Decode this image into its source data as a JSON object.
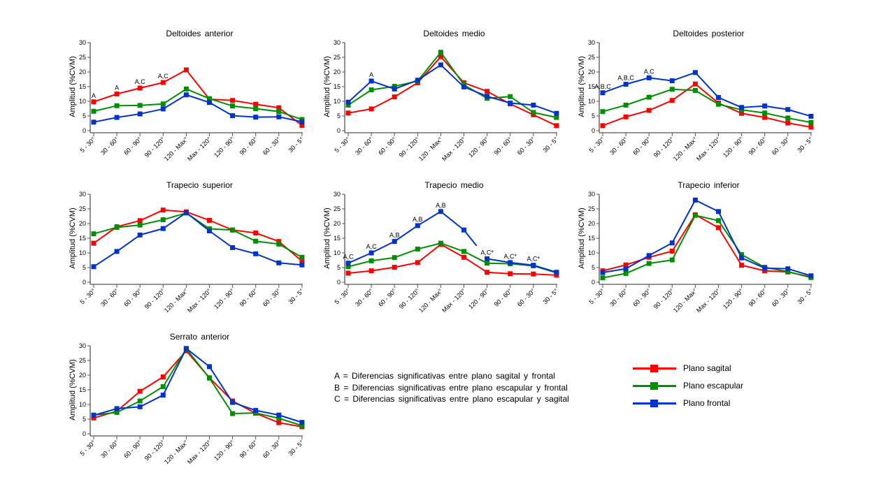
{
  "chart_data": [
    {
      "type": "line",
      "title": "Deltoides anterior",
      "xlabel": "",
      "ylabel": "Amplitud (%CVM)",
      "ylim": [
        0,
        30
      ],
      "yticks": [
        0,
        5,
        10,
        15,
        20,
        25,
        30
      ],
      "categories": [
        "5 - 30°",
        "30 - 60°",
        "60 - 90°",
        "90 - 120°",
        "120 - Max°",
        "Max - 120°",
        "120 - 90°",
        "90 - 60°",
        "60 - 30°",
        "30 - 5°"
      ],
      "series": [
        {
          "name": "Plano sagital",
          "color": "#ff0000",
          "values": [
            9.8,
            12.5,
            14.5,
            16.4,
            20.7,
            10.7,
            10.3,
            9.0,
            7.8,
            1.8
          ]
        },
        {
          "name": "Plano escapular",
          "color": "#008f00",
          "values": [
            6.6,
            8.5,
            8.6,
            9.1,
            14.2,
            10.9,
            8.4,
            7.5,
            6.5,
            3.8
          ]
        },
        {
          "name": "Plano frontal",
          "color": "#0033cc",
          "values": [
            2.9,
            4.5,
            5.7,
            7.4,
            12.2,
            9.6,
            5.1,
            4.6,
            4.7,
            3.0
          ]
        }
      ],
      "annotations": [
        {
          "index": 0,
          "text": "A",
          "above": 9.8
        },
        {
          "index": 1,
          "text": "A",
          "above": 12.5
        },
        {
          "index": 2,
          "text": "A,C",
          "above": 14.5
        },
        {
          "index": 3,
          "text": "A,C",
          "above": 16.4
        }
      ]
    },
    {
      "type": "line",
      "title": "Deltoides medio",
      "xlabel": "",
      "ylabel": "Amplitud (%CVM)",
      "ylim": [
        0,
        30
      ],
      "yticks": [
        0,
        5,
        10,
        15,
        20,
        25,
        30
      ],
      "categories": [
        "5 - 30°",
        "30 - 60°",
        "60 - 90°",
        "90 - 120°",
        "120 - Max°",
        "Max - 120°",
        "120 - 90°",
        "90 - 60°",
        "60 - 30°",
        "30 - 5°"
      ],
      "series": [
        {
          "name": "Plano sagital",
          "color": "#ff0000",
          "values": [
            6.0,
            7.4,
            11.5,
            16.3,
            25.2,
            16.3,
            13.4,
            9.1,
            5.4,
            1.7
          ]
        },
        {
          "name": "Plano escapular",
          "color": "#008f00",
          "values": [
            8.7,
            13.9,
            15.1,
            16.9,
            26.7,
            15.6,
            11.0,
            11.6,
            6.2,
            4.5
          ]
        },
        {
          "name": "Plano frontal",
          "color": "#0033cc",
          "values": [
            9.7,
            16.9,
            14.2,
            17.2,
            22.4,
            14.9,
            11.7,
            9.4,
            8.7,
            5.9
          ]
        }
      ],
      "annotations": [
        {
          "index": 1,
          "text": "A",
          "above": 16.9
        }
      ]
    },
    {
      "type": "line",
      "title": "Deltoides posterior",
      "xlabel": "",
      "ylabel": "Amplitud (%CVM)",
      "ylim": [
        0,
        30
      ],
      "yticks": [
        0,
        5,
        10,
        15,
        20,
        25,
        30
      ],
      "categories": [
        "5 - 30°",
        "30 - 60°",
        "60 - 90°",
        "90 - 120°",
        "120 - Max°",
        "Max - 120°",
        "120 - 90°",
        "90 - 60°",
        "60 - 30°",
        "30 - 5°"
      ],
      "series": [
        {
          "name": "Plano sagital",
          "color": "#ff0000",
          "values": [
            1.7,
            4.7,
            6.9,
            10.3,
            15.9,
            9.4,
            5.9,
            4.5,
            2.6,
            1.2
          ]
        },
        {
          "name": "Plano escapular",
          "color": "#008f00",
          "values": [
            6.5,
            8.7,
            11.4,
            14.1,
            13.7,
            9.0,
            7.1,
            6.0,
            4.3,
            2.8
          ]
        },
        {
          "name": "Plano frontal",
          "color": "#0033cc",
          "values": [
            12.9,
            15.8,
            18.0,
            17.0,
            19.8,
            11.3,
            7.9,
            8.4,
            7.2,
            4.9
          ]
        }
      ],
      "annotations": [
        {
          "index": 0,
          "text": "A,B,C",
          "above": 12.9
        },
        {
          "index": 1,
          "text": "A,B,C",
          "above": 15.8
        },
        {
          "index": 2,
          "text": "A,C",
          "above": 18.0
        }
      ]
    },
    {
      "type": "line",
      "title": "Trapecio superior",
      "xlabel": "",
      "ylabel": "Amplitud (%CVM)",
      "ylim": [
        0,
        30
      ],
      "yticks": [
        0,
        5,
        10,
        15,
        20,
        25,
        30
      ],
      "categories": [
        "5 - 30°",
        "30 - 60°",
        "60 - 90°",
        "90 - 120°",
        "120 - Max°",
        "Max - 120°",
        "120 - 90°",
        "90 - 60°",
        "60 - 30°",
        "30 - 5°"
      ],
      "series": [
        {
          "name": "Plano sagital",
          "color": "#ff0000",
          "values": [
            13.3,
            18.9,
            21.0,
            24.6,
            24.0,
            21.1,
            17.8,
            16.8,
            13.9,
            7.2
          ]
        },
        {
          "name": "Plano escapular",
          "color": "#008f00",
          "values": [
            16.5,
            18.7,
            19.5,
            21.3,
            23.6,
            18.2,
            17.8,
            14.0,
            13.0,
            8.5
          ]
        },
        {
          "name": "Plano frontal",
          "color": "#0033cc",
          "values": [
            5.3,
            10.5,
            16.1,
            18.3,
            23.7,
            17.5,
            11.8,
            9.7,
            6.6,
            5.9
          ]
        }
      ],
      "annotations": []
    },
    {
      "type": "line",
      "title": "Trapecio medio",
      "xlabel": "",
      "ylabel": "Amplitud (%CVM)",
      "ylim": [
        0,
        30
      ],
      "yticks": [
        0,
        5,
        10,
        15,
        20,
        25,
        30
      ],
      "categories": [
        "5 - 30°",
        "30 - 60°",
        "60 - 90°",
        "90 - 120°",
        "120 - Max°",
        "Max - 120°",
        "120 - 90°",
        "90 - 60°",
        "60 - 30°",
        "30 - 5°"
      ],
      "series": [
        {
          "name": "Plano sagital",
          "color": "#ff0000",
          "values": [
            3.1,
            3.9,
            5.1,
            6.7,
            12.9,
            8.5,
            3.4,
            2.9,
            2.8,
            2.4
          ]
        },
        {
          "name": "Plano escapular",
          "color": "#008f00",
          "values": [
            5.3,
            7.3,
            8.4,
            11.3,
            13.3,
            10.5,
            6.5,
            6.3,
            5.6,
            3.2
          ]
        },
        {
          "name": "Plano frontal",
          "color": "#0033cc",
          "values": [
            6.5,
            10.0,
            13.9,
            19.3,
            24.1,
            17.8,
            8.0,
            6.7,
            5.8,
            3.4
          ],
          "gap_after_index": 5
        }
      ],
      "annotations": [
        {
          "index": 0,
          "text": "A,C",
          "above": 6.5
        },
        {
          "index": 1,
          "text": "A,C",
          "above": 10.0
        },
        {
          "index": 2,
          "text": "A,B",
          "above": 13.9
        },
        {
          "index": 3,
          "text": "A,B",
          "above": 19.3
        },
        {
          "index": 4,
          "text": "A,B",
          "above": 24.1
        },
        {
          "index": 6,
          "text": "A,C*",
          "above": 8.0
        },
        {
          "index": 7,
          "text": "A,C*",
          "above": 6.7
        },
        {
          "index": 8,
          "text": "A,C*",
          "above": 5.8
        }
      ]
    },
    {
      "type": "line",
      "title": "Trapecio inferior",
      "xlabel": "",
      "ylabel": "Amplitud (%CVM)",
      "ylim": [
        0,
        30
      ],
      "yticks": [
        0,
        5,
        10,
        15,
        20,
        25,
        30
      ],
      "categories": [
        "5 - 30°",
        "30 - 60°",
        "60 - 90°",
        "90 - 120°",
        "120 - Max°",
        "Max - 120°",
        "120 - 90°",
        "90 - 60°",
        "60 - 30°",
        "30 - 5°"
      ],
      "series": [
        {
          "name": "Plano sagital",
          "color": "#ff0000",
          "values": [
            3.9,
            5.9,
            8.5,
            10.6,
            23.0,
            18.6,
            5.8,
            3.9,
            3.5,
            1.8
          ]
        },
        {
          "name": "Plano escapular",
          "color": "#008f00",
          "values": [
            1.5,
            3.0,
            6.4,
            7.6,
            22.8,
            21.0,
            9.4,
            5.1,
            3.6,
            1.6
          ]
        },
        {
          "name": "Plano frontal",
          "color": "#0033cc",
          "values": [
            3.3,
            4.6,
            9.1,
            13.4,
            28.0,
            24.1,
            8.3,
            4.8,
            4.6,
            2.2
          ]
        }
      ],
      "annotations": []
    },
    {
      "type": "line",
      "title": "Serrato anterior",
      "xlabel": "",
      "ylabel": "Amplitud (%CVM)",
      "ylim": [
        0,
        30
      ],
      "yticks": [
        0,
        5,
        10,
        15,
        20,
        25,
        30
      ],
      "categories": [
        "5 - 30°",
        "30 - 60°",
        "60 - 90°",
        "90 - 120°",
        "120 - Max°",
        "Max - 120°",
        "120 - 90°",
        "90 - 60°",
        "60 - 30°",
        "30 - 5°"
      ],
      "series": [
        {
          "name": "Plano sagital",
          "color": "#ff0000",
          "values": [
            5.4,
            7.7,
            14.5,
            19.4,
            28.3,
            19.1,
            11.2,
            7.0,
            3.8,
            2.4
          ]
        },
        {
          "name": "Plano escapular",
          "color": "#008f00",
          "values": [
            6.4,
            7.3,
            11.2,
            16.1,
            29.0,
            19.0,
            6.9,
            7.1,
            5.3,
            2.8
          ]
        },
        {
          "name": "Plano frontal",
          "color": "#0033cc",
          "values": [
            6.3,
            8.6,
            9.2,
            13.2,
            29.1,
            22.9,
            10.7,
            8.0,
            6.4,
            3.9
          ]
        }
      ],
      "annotations": []
    }
  ],
  "significance_notes": [
    "A = Diferencias  significativas  entre  plano  sagital y frontal",
    "B = Diferencias  significativas  entre  plano  escapular  y frontal",
    "C = Diferencias  significativas  entre  plano  escapular  y sagital"
  ],
  "legend": [
    {
      "label": "Plano sagital",
      "color": "#ff0000"
    },
    {
      "label": "Plano escapular",
      "color": "#008f00"
    },
    {
      "label": "Plano frontal",
      "color": "#0033cc"
    }
  ]
}
